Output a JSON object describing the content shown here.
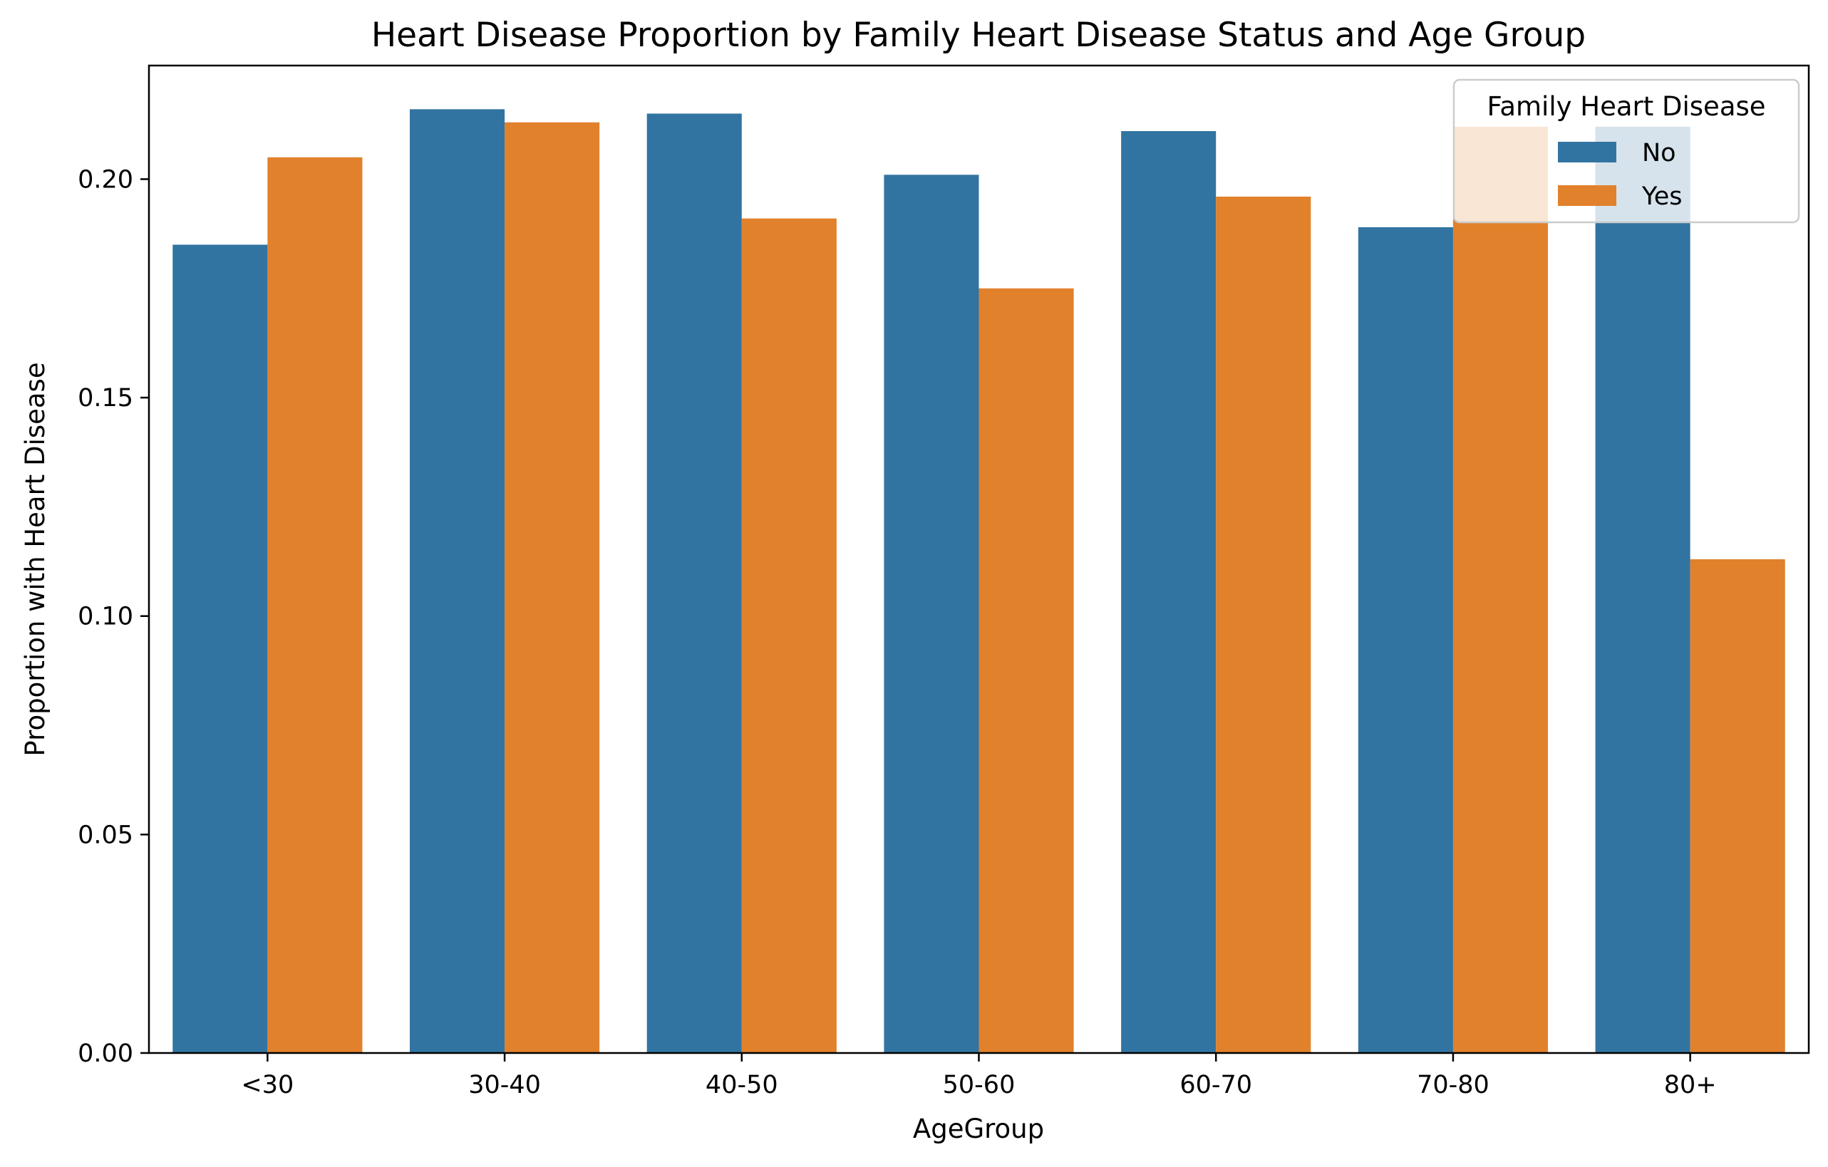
{
  "chart_data": {
    "type": "bar",
    "title": "Heart Disease Proportion by Family Heart Disease Status and Age Group",
    "xlabel": "AgeGroup",
    "ylabel": "Proportion with Heart Disease",
    "categories": [
      "<30",
      "30-40",
      "40-50",
      "50-60",
      "60-70",
      "70-80",
      "80+"
    ],
    "series": [
      {
        "name": "No",
        "color": "#3274a1",
        "values": [
          0.185,
          0.216,
          0.215,
          0.201,
          0.211,
          0.189,
          0.212
        ]
      },
      {
        "name": "Yes",
        "color": "#e1812c",
        "values": [
          0.205,
          0.213,
          0.191,
          0.175,
          0.196,
          0.212,
          0.113
        ]
      }
    ],
    "ylim": [
      0,
      0.226
    ],
    "yticks": [
      0.0,
      0.05,
      0.1,
      0.15,
      0.2
    ],
    "ytick_labels": [
      "0.00",
      "0.05",
      "0.10",
      "0.15",
      "0.20"
    ],
    "grid": false,
    "legend": {
      "title": "Family Heart Disease",
      "placement": "top-right"
    }
  }
}
